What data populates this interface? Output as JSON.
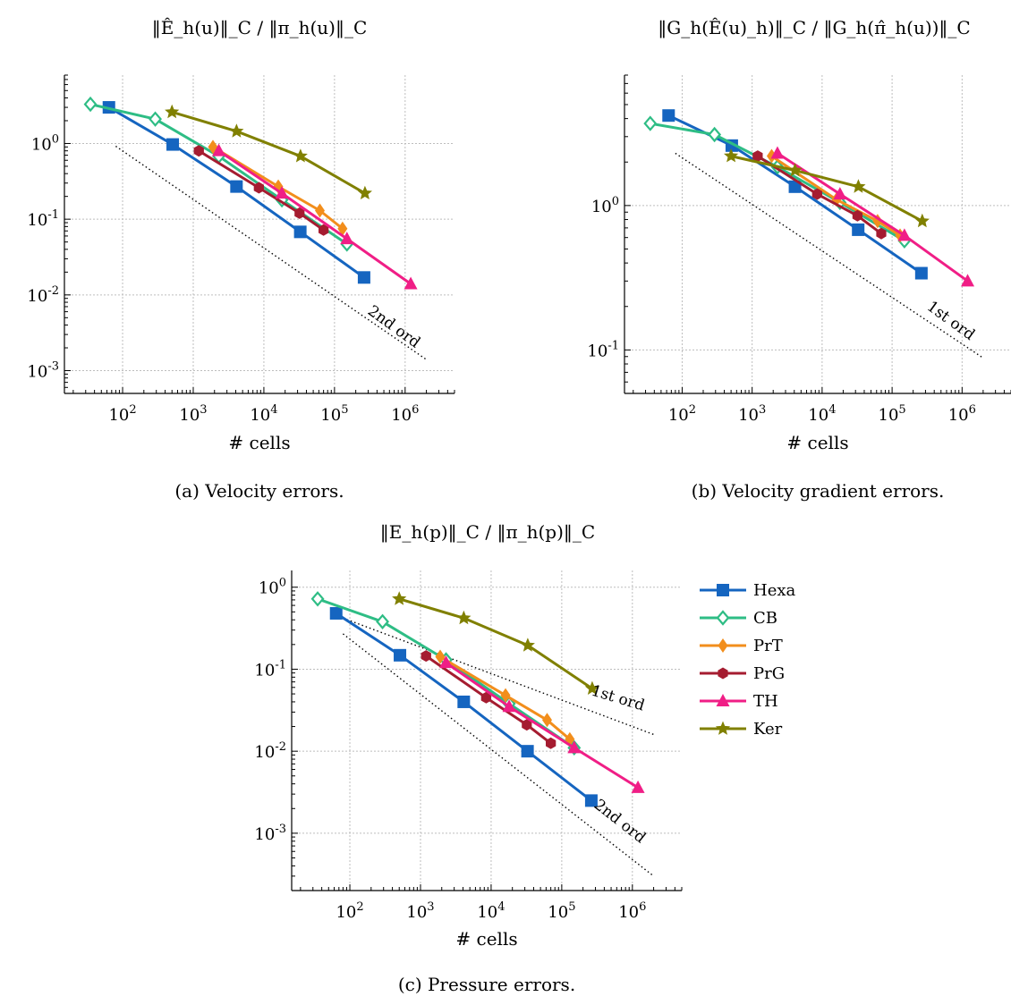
{
  "panels": [
    {
      "title": "‖Ê_h(u)‖_C / ‖π_h(u)‖_C",
      "caption": "(a) Velocity errors.",
      "xlabel": "# cells",
      "ylabel": "",
      "annotations": [
        {
          "text": "2nd ord"
        }
      ]
    },
    {
      "title": "‖G_h(Ê(u)_h)‖_C / ‖G_h(π̂_h(u))‖_C",
      "caption": "(b) Velocity gradient errors.",
      "xlabel": "# cells",
      "ylabel": "",
      "annotations": [
        {
          "text": "1st ord"
        }
      ]
    },
    {
      "title": "‖E_h(p)‖_C / ‖π_h(p)‖_C",
      "caption": "(c) Pressure errors.",
      "xlabel": "# cells",
      "ylabel": "",
      "annotations": [
        {
          "text": "1st ord"
        },
        {
          "text": "2nd ord"
        }
      ]
    }
  ],
  "legend": [
    {
      "name": "Hexa",
      "color": "#1565c0",
      "marker": "square"
    },
    {
      "name": "CB",
      "color": "#2ebd85",
      "marker": "diamond-open"
    },
    {
      "name": "PrT",
      "color": "#f28e1c",
      "marker": "diamond"
    },
    {
      "name": "PrG",
      "color": "#a51c30",
      "marker": "hexagon"
    },
    {
      "name": "TH",
      "color": "#f01e86",
      "marker": "triangle"
    },
    {
      "name": "Ker",
      "color": "#808000",
      "marker": "star"
    }
  ],
  "chart_data": [
    {
      "type": "line",
      "title": "‖Ê_h(u)‖_C / ‖π_h(u)‖_C",
      "xlabel": "# cells",
      "ylabel": "",
      "x_scale": "log",
      "y_scale": "log",
      "xlim": [
        15,
        5000000
      ],
      "ylim": [
        0.0005,
        8
      ],
      "x_ticks": [
        "10^2",
        "10^3",
        "10^4",
        "10^5",
        "10^6"
      ],
      "y_ticks": [
        "10^-3",
        "10^-2",
        "10^-1",
        "10^0"
      ],
      "grid": true,
      "series": [
        {
          "name": "Hexa",
          "x": [
            64,
            512,
            4096,
            32768,
            262144
          ],
          "y": [
            3.0,
            0.97,
            0.27,
            0.068,
            0.017
          ]
        },
        {
          "name": "CB",
          "x": [
            35,
            290,
            2300,
            18000,
            150000
          ],
          "y": [
            3.3,
            2.1,
            0.68,
            0.18,
            0.047
          ]
        },
        {
          "name": "PrT",
          "x": [
            1900,
            16000,
            62000,
            130000
          ],
          "y": [
            0.9,
            0.27,
            0.13,
            0.075
          ]
        },
        {
          "name": "PrG",
          "x": [
            1200,
            8500,
            32000,
            70000
          ],
          "y": [
            0.8,
            0.26,
            0.12,
            0.072
          ]
        },
        {
          "name": "TH",
          "x": [
            2300,
            18000,
            150000,
            1200000
          ],
          "y": [
            0.8,
            0.22,
            0.055,
            0.014
          ]
        },
        {
          "name": "Ker",
          "x": [
            500,
            4100,
            33000,
            270000
          ],
          "y": [
            2.6,
            1.45,
            0.68,
            0.22
          ]
        },
        {
          "name": "",
          "x": [
            80,
            2000000
          ],
          "y": [
            0.92,
            0.0014
          ],
          "style": "reference"
        }
      ],
      "annotations": [
        {
          "text": "2nd ord"
        }
      ]
    },
    {
      "type": "line",
      "title": "‖G_h(Ê(u)_h)‖_C / ‖G_h(π̂_h(u))‖_C",
      "xlabel": "# cells",
      "ylabel": "",
      "x_scale": "log",
      "y_scale": "log",
      "xlim": [
        15,
        5000000
      ],
      "ylim": [
        0.05,
        8
      ],
      "x_ticks": [
        "10^2",
        "10^3",
        "10^4",
        "10^5",
        "10^6"
      ],
      "y_ticks": [
        "10^-1",
        "10^0"
      ],
      "grid": true,
      "series": [
        {
          "name": "Hexa",
          "x": [
            64,
            512,
            4096,
            32768,
            262144
          ],
          "y": [
            4.2,
            2.6,
            1.35,
            0.68,
            0.34
          ]
        },
        {
          "name": "CB",
          "x": [
            35,
            290,
            2300,
            18000,
            150000
          ],
          "y": [
            3.7,
            3.1,
            1.85,
            1.05,
            0.57
          ]
        },
        {
          "name": "PrT",
          "x": [
            1900,
            16000,
            62000,
            130000
          ],
          "y": [
            2.2,
            1.1,
            0.78,
            0.62
          ]
        },
        {
          "name": "PrG",
          "x": [
            1200,
            8500,
            32000,
            70000
          ],
          "y": [
            2.2,
            1.2,
            0.85,
            0.64
          ]
        },
        {
          "name": "TH",
          "x": [
            2300,
            18000,
            150000,
            1200000
          ],
          "y": [
            2.3,
            1.2,
            0.62,
            0.3
          ]
        },
        {
          "name": "Ker",
          "x": [
            500,
            4100,
            33000,
            270000
          ],
          "y": [
            2.2,
            1.75,
            1.35,
            0.78
          ]
        },
        {
          "name": "",
          "x": [
            80,
            2000000
          ],
          "y": [
            2.3,
            0.088
          ],
          "style": "reference"
        }
      ],
      "annotations": [
        {
          "text": "1st ord"
        }
      ]
    },
    {
      "type": "line",
      "title": "‖E_h(p)‖_C / ‖π_h(p)‖_C",
      "xlabel": "# cells",
      "ylabel": "",
      "x_scale": "log",
      "y_scale": "log",
      "xlim": [
        15,
        5000000
      ],
      "ylim": [
        0.0002,
        1.6
      ],
      "x_ticks": [
        "10^2",
        "10^3",
        "10^4",
        "10^5",
        "10^6"
      ],
      "y_ticks": [
        "10^-3",
        "10^-2",
        "10^-1",
        "10^0"
      ],
      "grid": true,
      "series": [
        {
          "name": "Hexa",
          "x": [
            64,
            512,
            4096,
            32768,
            262144
          ],
          "y": [
            0.48,
            0.148,
            0.04,
            0.01,
            0.0025
          ]
        },
        {
          "name": "CB",
          "x": [
            35,
            290,
            2300,
            18000,
            150000
          ],
          "y": [
            0.72,
            0.38,
            0.13,
            0.038,
            0.011
          ]
        },
        {
          "name": "PrT",
          "x": [
            1900,
            16000,
            62000,
            130000
          ],
          "y": [
            0.142,
            0.048,
            0.024,
            0.014
          ]
        },
        {
          "name": "PrG",
          "x": [
            1200,
            8500,
            32000,
            70000
          ],
          "y": [
            0.145,
            0.045,
            0.021,
            0.0125
          ]
        },
        {
          "name": "TH",
          "x": [
            2300,
            18000,
            150000,
            1200000
          ],
          "y": [
            0.12,
            0.035,
            0.011,
            0.0036
          ]
        },
        {
          "name": "Ker",
          "x": [
            500,
            4100,
            33000,
            270000
          ],
          "y": [
            0.72,
            0.42,
            0.195,
            0.058
          ]
        },
        {
          "name": "",
          "x": [
            80,
            2000000
          ],
          "y": [
            0.42,
            0.016
          ],
          "style": "reference"
        },
        {
          "name": "",
          "x": [
            80,
            2000000
          ],
          "y": [
            0.27,
            0.0003
          ],
          "style": "reference"
        }
      ],
      "annotations": [
        {
          "text": "1st ord"
        },
        {
          "text": "2nd ord"
        }
      ]
    }
  ]
}
